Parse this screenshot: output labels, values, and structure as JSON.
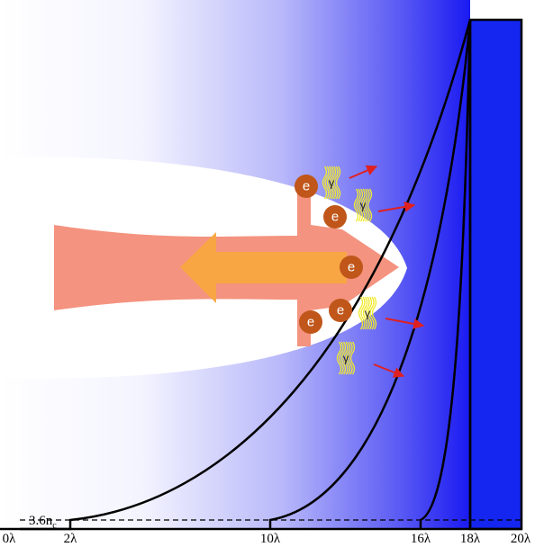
{
  "axis_labels": [
    "0λ",
    "2λ",
    "10λ",
    "16λ",
    "18λ",
    "20λ"
  ],
  "density_label": {
    "text": "3.6n",
    "subscript": "c"
  },
  "electrons": [
    "e",
    "e",
    "e",
    "e",
    "e"
  ],
  "photons": [
    "γ",
    "γ",
    "γ",
    "γ"
  ]
}
